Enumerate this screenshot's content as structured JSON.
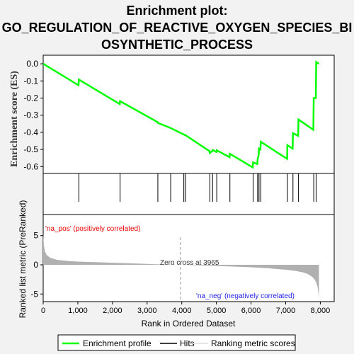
{
  "title_lines": [
    "Enrichment plot:",
    "GO_REGULATION_OF_REACTIVE_OXYGEN_SPECIES_BI",
    "OSYNTHETIC_PROCESS"
  ],
  "chart_data": {
    "type": "line",
    "ylabel_top": "Enrichment score (ES)",
    "ylabel_bottom": "Ranked list metric (PreRanked)",
    "xlabel": "Rank in Ordered Dataset",
    "x_range": [
      0,
      8400
    ],
    "x_ticks": [
      0,
      1000,
      2000,
      3000,
      4000,
      5000,
      6000,
      7000,
      8000
    ],
    "x_tick_labels": [
      "0",
      "1,000",
      "2,000",
      "3,000",
      "4,000",
      "5,000",
      "6,000",
      "7,000",
      "8,000"
    ],
    "es_range": [
      -0.64,
      0.05
    ],
    "es_ticks": [
      0.0,
      -0.1,
      -0.2,
      -0.3,
      -0.4,
      -0.5,
      -0.6
    ],
    "es_tick_labels": [
      "0.0",
      "-0.1",
      "-0.2",
      "-0.3",
      "-0.4",
      "-0.5",
      "-0.6"
    ],
    "metric_range": [
      -6.3,
      8.6
    ],
    "metric_ticks": [
      5,
      0,
      -5
    ],
    "metric_tick_labels": [
      "5",
      "0",
      "-5"
    ],
    "es_profile": {
      "x": [
        0,
        1020,
        1030,
        2210,
        2220,
        3300,
        3310,
        3680,
        4050,
        4110,
        4800,
        4810,
        4880,
        4890,
        5000,
        5010,
        5380,
        5390,
        6050,
        6060,
        6180,
        6190,
        6220,
        6230,
        6270,
        6280,
        7040,
        7050,
        7200,
        7210,
        7360,
        7370,
        7800,
        7810,
        7870,
        7880,
        7960
      ],
      "y": [
        0.0,
        -0.125,
        -0.092,
        -0.235,
        -0.218,
        -0.34,
        -0.345,
        -0.375,
        -0.412,
        -0.417,
        -0.51,
        -0.52,
        -0.51,
        -0.503,
        -0.515,
        -0.505,
        -0.545,
        -0.525,
        -0.605,
        -0.575,
        -0.585,
        -0.555,
        -0.535,
        -0.495,
        -0.5,
        -0.455,
        -0.555,
        -0.475,
        -0.495,
        -0.405,
        -0.42,
        -0.325,
        -0.385,
        -0.2,
        -0.2,
        0.01,
        0.0
      ]
    },
    "hits": [
      1030,
      2220,
      3310,
      3680,
      4060,
      4110,
      4810,
      4890,
      5010,
      5390,
      6060,
      6190,
      6230,
      6280,
      7050,
      7210,
      7370,
      7810,
      7880
    ],
    "heatmap_colors": [
      {
        "from": 0,
        "to": 1300,
        "color": "#f0505a"
      },
      {
        "from": 1300,
        "to": 2100,
        "color": "#f47a84"
      },
      {
        "from": 2100,
        "to": 3000,
        "color": "#f89aa2"
      },
      {
        "from": 3000,
        "to": 3500,
        "color": "#fbbcc8"
      },
      {
        "from": 3500,
        "to": 4000,
        "color": "#fdd6e0"
      },
      {
        "from": 4000,
        "to": 4400,
        "color": "#e6e2f5"
      },
      {
        "from": 4400,
        "to": 5200,
        "color": "#d6d6f6"
      },
      {
        "from": 5200,
        "to": 5800,
        "color": "#c4c4f4"
      },
      {
        "from": 5800,
        "to": 6400,
        "color": "#a6a6ee"
      },
      {
        "from": 6400,
        "to": 7000,
        "color": "#8686e6"
      },
      {
        "from": 7000,
        "to": 7600,
        "color": "#6262dc"
      },
      {
        "from": 7600,
        "to": 7950,
        "color": "#2a2ab4"
      }
    ],
    "zero_cross": 3965,
    "zero_cross_label": "Zero cross at 3965",
    "pos_label": "'na_pos' (positively correlated)",
    "neg_label": "'na_neg' (negatively correlated)",
    "metric_curve": {
      "x": [
        0,
        20,
        50,
        100,
        200,
        400,
        700,
        1000,
        1500,
        2000,
        2500,
        3000,
        3500,
        3965,
        4500,
        5000,
        5500,
        6000,
        6500,
        7000,
        7300,
        7500,
        7650,
        7750,
        7820,
        7880,
        7920,
        7950,
        7960
      ],
      "y": [
        5.2,
        3.3,
        2.3,
        1.7,
        1.2,
        0.85,
        0.65,
        0.55,
        0.45,
        0.35,
        0.25,
        0.15,
        0.05,
        0.0,
        -0.1,
        -0.2,
        -0.3,
        -0.42,
        -0.6,
        -0.85,
        -1.05,
        -1.3,
        -1.6,
        -2.0,
        -2.4,
        -3.0,
        -3.8,
        -5.0,
        -6.0
      ]
    },
    "legend": [
      "Enrichment profile",
      "Hits",
      "Ranking metric scores"
    ],
    "colors": {
      "profile": "#00ff00",
      "hits": "#000000",
      "metric": "#b0b0b0",
      "zero_line": "#999999",
      "pos_text": "#ee0000",
      "neg_text": "#2222ee",
      "axis": "#000000"
    }
  }
}
